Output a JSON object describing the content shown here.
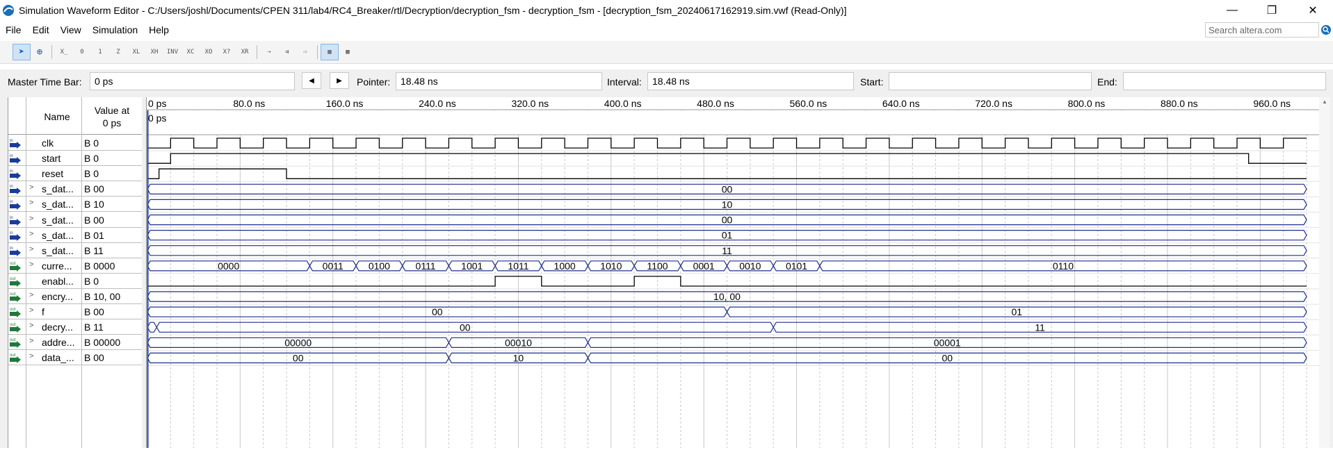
{
  "window": {
    "title": "Simulation Waveform Editor - C:/Users/joshl/Documents/CPEN 311/lab4/RC4_Breaker/rtl/Decryption/decryption_fsm - decryption_fsm - [decryption_fsm_20240617162919.sim.vwf (Read-Only)]",
    "minimize_glyph": "—",
    "restore_glyph": "❐",
    "close_glyph": "✕"
  },
  "menu": {
    "items": [
      "File",
      "Edit",
      "View",
      "Simulation",
      "Help"
    ]
  },
  "search": {
    "placeholder": "Search altera.com"
  },
  "toolbar": {
    "buttons": [
      {
        "icon": "selection-tool-icon",
        "glyph": "➤",
        "active": true
      },
      {
        "icon": "zoom-tool-icon",
        "glyph": "⊕",
        "active": false
      },
      {
        "icon": "force-unknown-icon",
        "glyph": "X̲"
      },
      {
        "icon": "force-low-icon",
        "glyph": "0"
      },
      {
        "icon": "force-high-icon",
        "glyph": "1"
      },
      {
        "icon": "high-impedance-icon",
        "glyph": "Z"
      },
      {
        "icon": "weak-low-icon",
        "glyph": "XL"
      },
      {
        "icon": "weak-high-icon",
        "glyph": "XH"
      },
      {
        "icon": "invert-icon",
        "glyph": "INV"
      },
      {
        "icon": "count-value-icon",
        "glyph": "XC"
      },
      {
        "icon": "clock-icon",
        "glyph": "XO"
      },
      {
        "icon": "arbitrary-value-icon",
        "glyph": "X?"
      },
      {
        "icon": "random-value-icon",
        "glyph": "XR"
      },
      {
        "icon": "functional-sim-icon",
        "glyph": "⇢"
      },
      {
        "icon": "timing-sim-icon",
        "glyph": "⇉"
      },
      {
        "icon": "netlist-icon",
        "glyph": "⇨"
      },
      {
        "icon": "waveform-view-icon",
        "glyph": "▦",
        "active": true
      },
      {
        "icon": "grid-icon",
        "glyph": "▩"
      }
    ]
  },
  "timebar": {
    "master_label": "Master Time Bar:",
    "master_value": "0 ps",
    "prev_glyph": "◀",
    "next_glyph": "▶",
    "pointer_label": "Pointer:",
    "pointer_value": "18.48 ns",
    "interval_label": "Interval:",
    "interval_value": "18.48 ns",
    "start_label": "Start:",
    "start_value": "",
    "end_label": "End:",
    "end_value": ""
  },
  "header": {
    "name": "Name",
    "value_at_line1": "Value at",
    "value_at_line2": "0 ps",
    "time_marker": "0 ps"
  },
  "time_axis": {
    "unit": "ns",
    "labels": [
      "0 ps",
      "80.0 ns",
      "160.0 ns",
      "240.0 ns",
      "320.0 ns",
      "400.0 ns",
      "480.0 ns",
      "560.0 ns",
      "640.0 ns",
      "720.0 ns",
      "800.0 ns",
      "880.0 ns",
      "960.0 ns"
    ],
    "label_times": [
      0,
      80,
      160,
      240,
      320,
      400,
      480,
      560,
      640,
      720,
      800,
      880,
      960
    ],
    "view_end": 1000,
    "cursor_time": 0
  },
  "colors": {
    "bus": "#1e2f8c",
    "scalar": "#000000",
    "input_icon": "#1a3c9a",
    "output_icon": "#1f7a3a",
    "grid": "#c7c7c7",
    "cursor": "#1a3c9a"
  },
  "signals": [
    {
      "name": "clk",
      "value": "B 0",
      "dir": "in",
      "bus": false,
      "clock": {
        "period": 40,
        "high_first": false
      }
    },
    {
      "name": "start",
      "value": "B 0",
      "dir": "in",
      "bus": false,
      "edges": [
        [
          0,
          0
        ],
        [
          20,
          1
        ],
        [
          950,
          0
        ]
      ]
    },
    {
      "name": "reset",
      "value": "B 0",
      "dir": "in",
      "bus": false,
      "edges": [
        [
          0,
          0
        ],
        [
          10,
          1
        ],
        [
          120,
          0
        ]
      ]
    },
    {
      "name": "s_dat...",
      "value": "B 00",
      "dir": "in",
      "bus": true,
      "segments": [
        [
          0,
          1000,
          "00"
        ]
      ]
    },
    {
      "name": "s_dat...",
      "value": "B 10",
      "dir": "in",
      "bus": true,
      "segments": [
        [
          0,
          1000,
          "10"
        ]
      ]
    },
    {
      "name": "s_dat...",
      "value": "B 00",
      "dir": "in",
      "bus": true,
      "segments": [
        [
          0,
          1000,
          "00"
        ]
      ]
    },
    {
      "name": "s_dat...",
      "value": "B 01",
      "dir": "in",
      "bus": true,
      "segments": [
        [
          0,
          1000,
          "01"
        ]
      ]
    },
    {
      "name": "s_dat...",
      "value": "B 11",
      "dir": "in",
      "bus": true,
      "segments": [
        [
          0,
          1000,
          "11"
        ]
      ]
    },
    {
      "name": "curre...",
      "value": "B 0000",
      "dir": "out",
      "bus": true,
      "segments": [
        [
          0,
          140,
          "0000"
        ],
        [
          140,
          180,
          "0011"
        ],
        [
          180,
          220,
          "0100"
        ],
        [
          220,
          260,
          "0111"
        ],
        [
          260,
          300,
          "1001"
        ],
        [
          300,
          340,
          "1011"
        ],
        [
          340,
          380,
          "1000"
        ],
        [
          380,
          420,
          "1010"
        ],
        [
          420,
          460,
          "1100"
        ],
        [
          460,
          500,
          "0001"
        ],
        [
          500,
          540,
          "0010"
        ],
        [
          540,
          580,
          "0101"
        ],
        [
          580,
          1000,
          "0110"
        ]
      ]
    },
    {
      "name": "enabl...",
      "value": "B 0",
      "dir": "out",
      "bus": false,
      "edges": [
        [
          0,
          0
        ],
        [
          300,
          1
        ],
        [
          340,
          0
        ],
        [
          420,
          1
        ],
        [
          460,
          0
        ]
      ]
    },
    {
      "name": "encry...",
      "value": "B 10, 00",
      "dir": "out",
      "bus": true,
      "segments": [
        [
          0,
          1000,
          "10, 00"
        ]
      ]
    },
    {
      "name": "f",
      "value": "B 00",
      "dir": "out",
      "bus": true,
      "segments": [
        [
          0,
          500,
          "00"
        ],
        [
          500,
          1000,
          "01"
        ]
      ]
    },
    {
      "name": "decry...",
      "value": "B 11",
      "dir": "out",
      "bus": true,
      "segments": [
        [
          0,
          8,
          "11"
        ],
        [
          8,
          540,
          "00"
        ],
        [
          540,
          1000,
          "11"
        ]
      ]
    },
    {
      "name": "addre...",
      "value": "B 00000",
      "dir": "out",
      "bus": true,
      "segments": [
        [
          0,
          260,
          "00000"
        ],
        [
          260,
          380,
          "00010"
        ],
        [
          380,
          1000,
          "00001"
        ]
      ]
    },
    {
      "name": "data_...",
      "value": "B 00",
      "dir": "out",
      "bus": true,
      "segments": [
        [
          0,
          260,
          "00"
        ],
        [
          260,
          380,
          "10"
        ],
        [
          380,
          1000,
          "00"
        ]
      ]
    }
  ]
}
